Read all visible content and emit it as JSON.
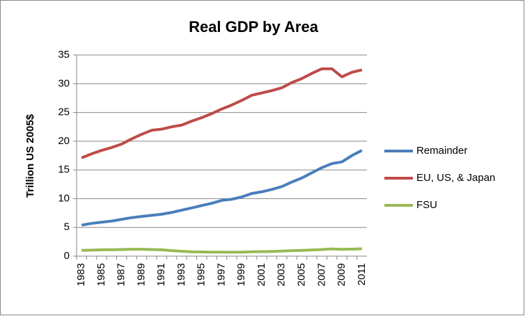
{
  "chart_data": {
    "type": "line",
    "title": "Real GDP by Area",
    "y_label": "Trillion US 2005$",
    "categories": [
      "1983",
      null,
      "1985",
      null,
      "1987",
      null,
      "1989",
      null,
      "1991",
      null,
      "1993",
      null,
      "1995",
      null,
      "1997",
      null,
      "1999",
      null,
      "2001",
      null,
      "2003",
      null,
      "2005",
      null,
      "2007",
      null,
      "2009",
      null,
      "2011"
    ],
    "series": [
      {
        "name": "Remainder",
        "color": "#4a7ebb",
        "values": [
          5.4,
          5.7,
          5.9,
          6.1,
          6.4,
          6.7,
          6.9,
          7.1,
          7.3,
          7.6,
          8.0,
          8.4,
          8.8,
          9.2,
          9.7,
          9.9,
          10.3,
          10.9,
          11.2,
          11.6,
          12.1,
          12.9,
          13.6,
          14.5,
          15.4,
          16.1,
          16.4,
          17.5,
          18.4
        ]
      },
      {
        "name": "EU, US, & Japan",
        "color": "#be4b48",
        "values": [
          17.1,
          17.8,
          18.4,
          18.9,
          19.5,
          20.4,
          21.2,
          21.9,
          22.1,
          22.5,
          22.8,
          23.5,
          24.1,
          24.8,
          25.6,
          26.3,
          27.1,
          28.0,
          28.4,
          28.8,
          29.3,
          30.2,
          30.9,
          31.8,
          32.6,
          32.6,
          31.2,
          32.0,
          32.4
        ]
      },
      {
        "name": "FSU",
        "color": "#98b954",
        "values": [
          1.0,
          1.05,
          1.1,
          1.12,
          1.15,
          1.2,
          1.2,
          1.15,
          1.1,
          0.95,
          0.85,
          0.75,
          0.72,
          0.7,
          0.7,
          0.68,
          0.7,
          0.75,
          0.78,
          0.82,
          0.88,
          0.95,
          1.0,
          1.08,
          1.15,
          1.25,
          1.18,
          1.22,
          1.28
        ]
      }
    ],
    "ylim": [
      0,
      35
    ],
    "yticks": [
      0,
      5,
      10,
      15,
      20,
      25,
      30,
      35
    ],
    "grid": true,
    "legend": "right"
  }
}
